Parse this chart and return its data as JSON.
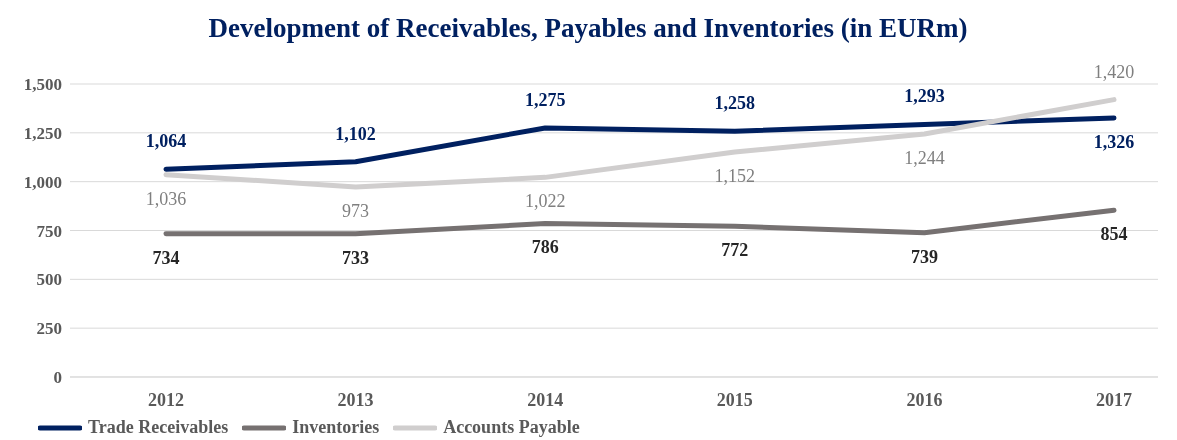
{
  "chart_data": {
    "type": "line",
    "title": "Development of Receivables, Payables and Inventories (in EURm)",
    "categories": [
      "2012",
      "2013",
      "2014",
      "2015",
      "2016",
      "2017"
    ],
    "series": [
      {
        "name": "Trade Receivables",
        "color": "#002060",
        "values": [
          1064,
          1102,
          1275,
          1258,
          1293,
          1326
        ],
        "value_labels": [
          "1,064",
          "1,102",
          "1,275",
          "1,258",
          "1,293",
          "1,326"
        ]
      },
      {
        "name": "Inventories",
        "color": "#767171",
        "values": [
          734,
          733,
          786,
          772,
          739,
          854
        ],
        "value_labels": [
          "734",
          "733",
          "786",
          "772",
          "739",
          "854"
        ]
      },
      {
        "name": "Accounts Payable",
        "color": "#d0cece",
        "values": [
          1036,
          973,
          1022,
          1152,
          1244,
          1420
        ],
        "value_labels": [
          "1,036",
          "973",
          "1,022",
          "1,152",
          "1,244",
          "1,420"
        ]
      }
    ],
    "ylim": [
      0,
      1500
    ],
    "yticks": [
      {
        "value": 0,
        "label": "0"
      },
      {
        "value": 250,
        "label": "250"
      },
      {
        "value": 500,
        "label": "500"
      },
      {
        "value": 750,
        "label": "750"
      },
      {
        "value": 1000,
        "label": "1,000"
      },
      {
        "value": 1250,
        "label": "1,250"
      },
      {
        "value": 1500,
        "label": "1,500"
      }
    ],
    "grid": "y",
    "legend": "bottom left",
    "marker": "none"
  }
}
